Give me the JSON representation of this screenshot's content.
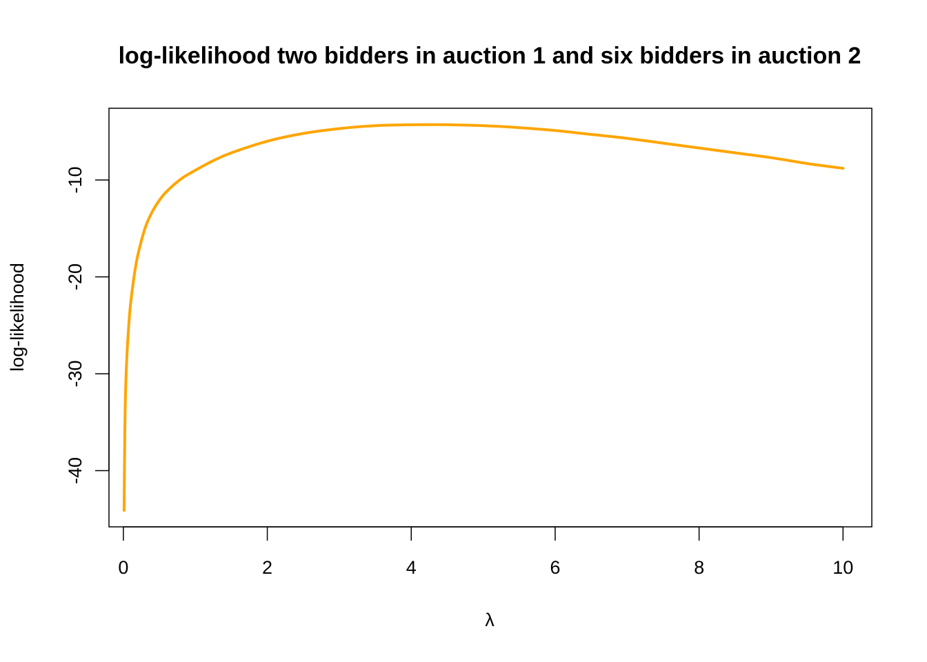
{
  "chart_data": {
    "type": "line",
    "title": "log-likelihood two bidders in auction 1 and six bidders in auction 2",
    "xlabel": "λ",
    "ylabel": "log-likelihood",
    "xlim": [
      -0.2,
      10.4
    ],
    "ylim": [
      -45.8,
      -2.6
    ],
    "x_ticks": [
      0,
      2,
      4,
      6,
      8,
      10
    ],
    "x_tick_labels": [
      "0",
      "2",
      "4",
      "6",
      "8",
      "10"
    ],
    "y_ticks": [
      -40,
      -30,
      -20,
      -10
    ],
    "y_tick_labels": [
      "-40",
      "-30",
      "-20",
      "-10"
    ],
    "grid": false,
    "legend": "none",
    "series": [
      {
        "color": "#FFA500",
        "x": [
          0.01,
          0.02,
          0.03,
          0.05,
          0.08,
          0.1,
          0.15,
          0.2,
          0.3,
          0.4,
          0.5,
          0.6,
          0.8,
          1.0,
          1.25,
          1.5,
          2.0,
          2.5,
          3.0,
          3.5,
          4.0,
          4.5,
          5.0,
          5.5,
          6.0,
          6.5,
          7.0,
          7.5,
          8.0,
          8.5,
          9.0,
          9.5,
          10.0
        ],
        "y": [
          -44.1,
          -36.0,
          -32.0,
          -28.0,
          -24.5,
          -22.8,
          -19.9,
          -17.8,
          -15.0,
          -13.3,
          -12.1,
          -11.2,
          -9.9,
          -9.0,
          -8.0,
          -7.2,
          -6.0,
          -5.2,
          -4.7,
          -4.4,
          -4.3,
          -4.3,
          -4.4,
          -4.6,
          -4.9,
          -5.3,
          -5.7,
          -6.2,
          -6.7,
          -7.2,
          -7.7,
          -8.3,
          -8.8
        ]
      }
    ]
  }
}
